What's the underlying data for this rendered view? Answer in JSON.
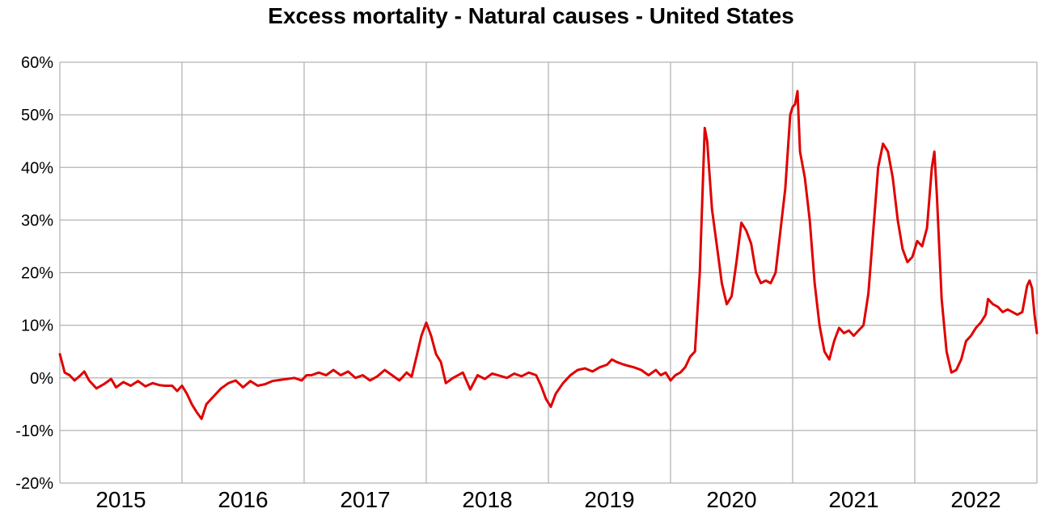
{
  "chart_data": {
    "type": "line",
    "title": "Excess mortality - Natural causes - United States",
    "xlabel": "",
    "ylabel": "",
    "ylim": [
      -20,
      60
    ],
    "y_ticks": [
      "60%",
      "50%",
      "40%",
      "30%",
      "20%",
      "10%",
      "0%",
      "-10%",
      "-20%"
    ],
    "y_tick_values": [
      60,
      50,
      40,
      30,
      20,
      10,
      0,
      -10,
      -20
    ],
    "x_categories": [
      "2015",
      "2016",
      "2017",
      "2018",
      "2019",
      "2020",
      "2021",
      "2022"
    ],
    "xlim": [
      2015.0,
      2023.0
    ],
    "grid": true,
    "legend": "none",
    "line_color": "#e00000",
    "grid_color": "#b3b3b3",
    "series": [
      {
        "values": [
          [
            2015.0,
            4.5
          ],
          [
            2015.04,
            1.0
          ],
          [
            2015.08,
            0.5
          ],
          [
            2015.12,
            -0.5
          ],
          [
            2015.16,
            0.3
          ],
          [
            2015.2,
            1.2
          ],
          [
            2015.24,
            -0.5
          ],
          [
            2015.3,
            -2.0
          ],
          [
            2015.36,
            -1.2
          ],
          [
            2015.42,
            -0.2
          ],
          [
            2015.46,
            -1.8
          ],
          [
            2015.52,
            -0.8
          ],
          [
            2015.58,
            -1.5
          ],
          [
            2015.64,
            -0.6
          ],
          [
            2015.7,
            -1.6
          ],
          [
            2015.76,
            -1.0
          ],
          [
            2015.82,
            -1.4
          ],
          [
            2015.86,
            -1.5
          ],
          [
            2015.92,
            -1.5
          ],
          [
            2015.96,
            -2.5
          ],
          [
            2016.0,
            -1.5
          ],
          [
            2016.04,
            -3.0
          ],
          [
            2016.08,
            -5.0
          ],
          [
            2016.12,
            -6.5
          ],
          [
            2016.16,
            -7.8
          ],
          [
            2016.2,
            -5.0
          ],
          [
            2016.26,
            -3.5
          ],
          [
            2016.32,
            -2.0
          ],
          [
            2016.38,
            -1.0
          ],
          [
            2016.44,
            -0.5
          ],
          [
            2016.5,
            -1.8
          ],
          [
            2016.56,
            -0.6
          ],
          [
            2016.62,
            -1.5
          ],
          [
            2016.68,
            -1.2
          ],
          [
            2016.74,
            -0.6
          ],
          [
            2016.8,
            -0.4
          ],
          [
            2016.86,
            -0.2
          ],
          [
            2016.92,
            0.0
          ],
          [
            2016.98,
            -0.5
          ],
          [
            2017.02,
            0.5
          ],
          [
            2017.06,
            0.5
          ],
          [
            2017.12,
            1.0
          ],
          [
            2017.18,
            0.5
          ],
          [
            2017.24,
            1.5
          ],
          [
            2017.3,
            0.5
          ],
          [
            2017.36,
            1.2
          ],
          [
            2017.42,
            0.0
          ],
          [
            2017.48,
            0.5
          ],
          [
            2017.54,
            -0.5
          ],
          [
            2017.6,
            0.3
          ],
          [
            2017.66,
            1.5
          ],
          [
            2017.72,
            0.5
          ],
          [
            2017.78,
            -0.5
          ],
          [
            2017.84,
            1.0
          ],
          [
            2017.88,
            0.2
          ],
          [
            2017.92,
            4.0
          ],
          [
            2017.96,
            8.0
          ],
          [
            2018.0,
            10.5
          ],
          [
            2018.04,
            8.0
          ],
          [
            2018.08,
            4.5
          ],
          [
            2018.12,
            3.0
          ],
          [
            2018.16,
            -1.0
          ],
          [
            2018.22,
            0.0
          ],
          [
            2018.3,
            1.0
          ],
          [
            2018.36,
            -2.2
          ],
          [
            2018.42,
            0.5
          ],
          [
            2018.48,
            -0.2
          ],
          [
            2018.54,
            0.8
          ],
          [
            2018.6,
            0.4
          ],
          [
            2018.66,
            0.0
          ],
          [
            2018.72,
            0.8
          ],
          [
            2018.78,
            0.3
          ],
          [
            2018.84,
            1.0
          ],
          [
            2018.9,
            0.5
          ],
          [
            2018.94,
            -1.5
          ],
          [
            2018.98,
            -4.0
          ],
          [
            2019.02,
            -5.5
          ],
          [
            2019.06,
            -3.0
          ],
          [
            2019.12,
            -1.0
          ],
          [
            2019.18,
            0.5
          ],
          [
            2019.24,
            1.5
          ],
          [
            2019.3,
            1.8
          ],
          [
            2019.36,
            1.2
          ],
          [
            2019.42,
            2.0
          ],
          [
            2019.48,
            2.5
          ],
          [
            2019.52,
            3.5
          ],
          [
            2019.56,
            3.0
          ],
          [
            2019.62,
            2.5
          ],
          [
            2019.7,
            2.0
          ],
          [
            2019.76,
            1.5
          ],
          [
            2019.82,
            0.5
          ],
          [
            2019.88,
            1.5
          ],
          [
            2019.92,
            0.5
          ],
          [
            2019.96,
            1.0
          ],
          [
            2020.0,
            -0.5
          ],
          [
            2020.04,
            0.5
          ],
          [
            2020.08,
            1.0
          ],
          [
            2020.12,
            2.0
          ],
          [
            2020.16,
            4.0
          ],
          [
            2020.2,
            5.0
          ],
          [
            2020.24,
            20.0
          ],
          [
            2020.28,
            47.5
          ],
          [
            2020.3,
            45.0
          ],
          [
            2020.34,
            32.0
          ],
          [
            2020.38,
            25.0
          ],
          [
            2020.42,
            18.0
          ],
          [
            2020.46,
            14.0
          ],
          [
            2020.5,
            15.5
          ],
          [
            2020.54,
            22.0
          ],
          [
            2020.58,
            29.5
          ],
          [
            2020.62,
            28.0
          ],
          [
            2020.66,
            25.5
          ],
          [
            2020.7,
            20.0
          ],
          [
            2020.74,
            18.0
          ],
          [
            2020.78,
            18.5
          ],
          [
            2020.82,
            18.0
          ],
          [
            2020.86,
            20.0
          ],
          [
            2020.9,
            28.0
          ],
          [
            2020.94,
            36.0
          ],
          [
            2020.98,
            50.0
          ],
          [
            2021.0,
            51.5
          ],
          [
            2021.02,
            52.0
          ],
          [
            2021.04,
            54.5
          ],
          [
            2021.06,
            43.0
          ],
          [
            2021.1,
            38.0
          ],
          [
            2021.14,
            30.0
          ],
          [
            2021.18,
            18.0
          ],
          [
            2021.22,
            10.0
          ],
          [
            2021.26,
            5.0
          ],
          [
            2021.3,
            3.5
          ],
          [
            2021.34,
            7.0
          ],
          [
            2021.38,
            9.5
          ],
          [
            2021.42,
            8.5
          ],
          [
            2021.46,
            9.0
          ],
          [
            2021.5,
            8.0
          ],
          [
            2021.54,
            9.0
          ],
          [
            2021.58,
            10.0
          ],
          [
            2021.62,
            16.0
          ],
          [
            2021.66,
            28.0
          ],
          [
            2021.7,
            40.0
          ],
          [
            2021.74,
            44.5
          ],
          [
            2021.78,
            43.0
          ],
          [
            2021.82,
            38.0
          ],
          [
            2021.86,
            30.0
          ],
          [
            2021.9,
            24.5
          ],
          [
            2021.94,
            22.0
          ],
          [
            2021.98,
            23.0
          ],
          [
            2022.02,
            26.0
          ],
          [
            2022.06,
            25.0
          ],
          [
            2022.1,
            28.5
          ],
          [
            2022.14,
            40.0
          ],
          [
            2022.16,
            43.0
          ],
          [
            2022.18,
            35.0
          ],
          [
            2022.22,
            15.0
          ],
          [
            2022.26,
            5.0
          ],
          [
            2022.3,
            1.0
          ],
          [
            2022.34,
            1.5
          ],
          [
            2022.38,
            3.5
          ],
          [
            2022.42,
            7.0
          ],
          [
            2022.46,
            8.0
          ],
          [
            2022.5,
            9.5
          ],
          [
            2022.54,
            10.5
          ],
          [
            2022.58,
            12.0
          ],
          [
            2022.6,
            15.0
          ],
          [
            2022.64,
            14.0
          ],
          [
            2022.68,
            13.5
          ],
          [
            2022.72,
            12.5
          ],
          [
            2022.76,
            13.0
          ],
          [
            2022.8,
            12.5
          ],
          [
            2022.84,
            12.0
          ],
          [
            2022.88,
            12.5
          ],
          [
            2022.92,
            17.5
          ],
          [
            2022.94,
            18.5
          ],
          [
            2022.96,
            17.0
          ],
          [
            2022.98,
            12.0
          ],
          [
            2023.0,
            8.5
          ]
        ]
      }
    ]
  }
}
